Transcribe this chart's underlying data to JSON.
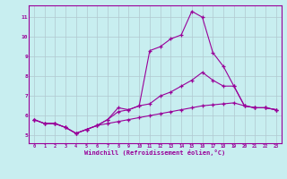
{
  "xlabel": "Windchill (Refroidissement éolien,°C)",
  "bg_color": "#c8eef0",
  "line_color": "#990099",
  "grid_color": "#b0c8d0",
  "x": [
    0,
    1,
    2,
    3,
    4,
    5,
    6,
    7,
    8,
    9,
    10,
    11,
    12,
    13,
    14,
    15,
    16,
    17,
    18,
    19,
    20,
    21,
    22,
    23
  ],
  "line1": [
    5.8,
    5.6,
    5.6,
    5.4,
    5.1,
    5.3,
    5.5,
    5.8,
    6.4,
    6.3,
    6.5,
    9.3,
    9.5,
    9.9,
    10.1,
    11.3,
    11.0,
    9.2,
    8.5,
    7.5,
    6.5,
    6.4,
    6.4,
    6.3
  ],
  "line2": [
    5.8,
    5.6,
    5.6,
    5.4,
    5.1,
    5.3,
    5.5,
    5.8,
    6.2,
    6.3,
    6.5,
    6.6,
    7.0,
    7.2,
    7.5,
    7.8,
    8.2,
    7.8,
    7.5,
    7.5,
    6.5,
    6.4,
    6.4,
    6.3
  ],
  "line3": [
    5.8,
    5.6,
    5.6,
    5.4,
    5.1,
    5.3,
    5.5,
    5.6,
    5.7,
    5.8,
    5.9,
    6.0,
    6.1,
    6.2,
    6.3,
    6.4,
    6.5,
    6.55,
    6.6,
    6.65,
    6.5,
    6.4,
    6.4,
    6.3
  ],
  "ylim": [
    4.6,
    11.6
  ],
  "xlim": [
    -0.5,
    23.5
  ],
  "yticks": [
    5,
    6,
    7,
    8,
    9,
    10,
    11
  ],
  "xticks": [
    0,
    1,
    2,
    3,
    4,
    5,
    6,
    7,
    8,
    9,
    10,
    11,
    12,
    13,
    14,
    15,
    16,
    17,
    18,
    19,
    20,
    21,
    22,
    23
  ]
}
